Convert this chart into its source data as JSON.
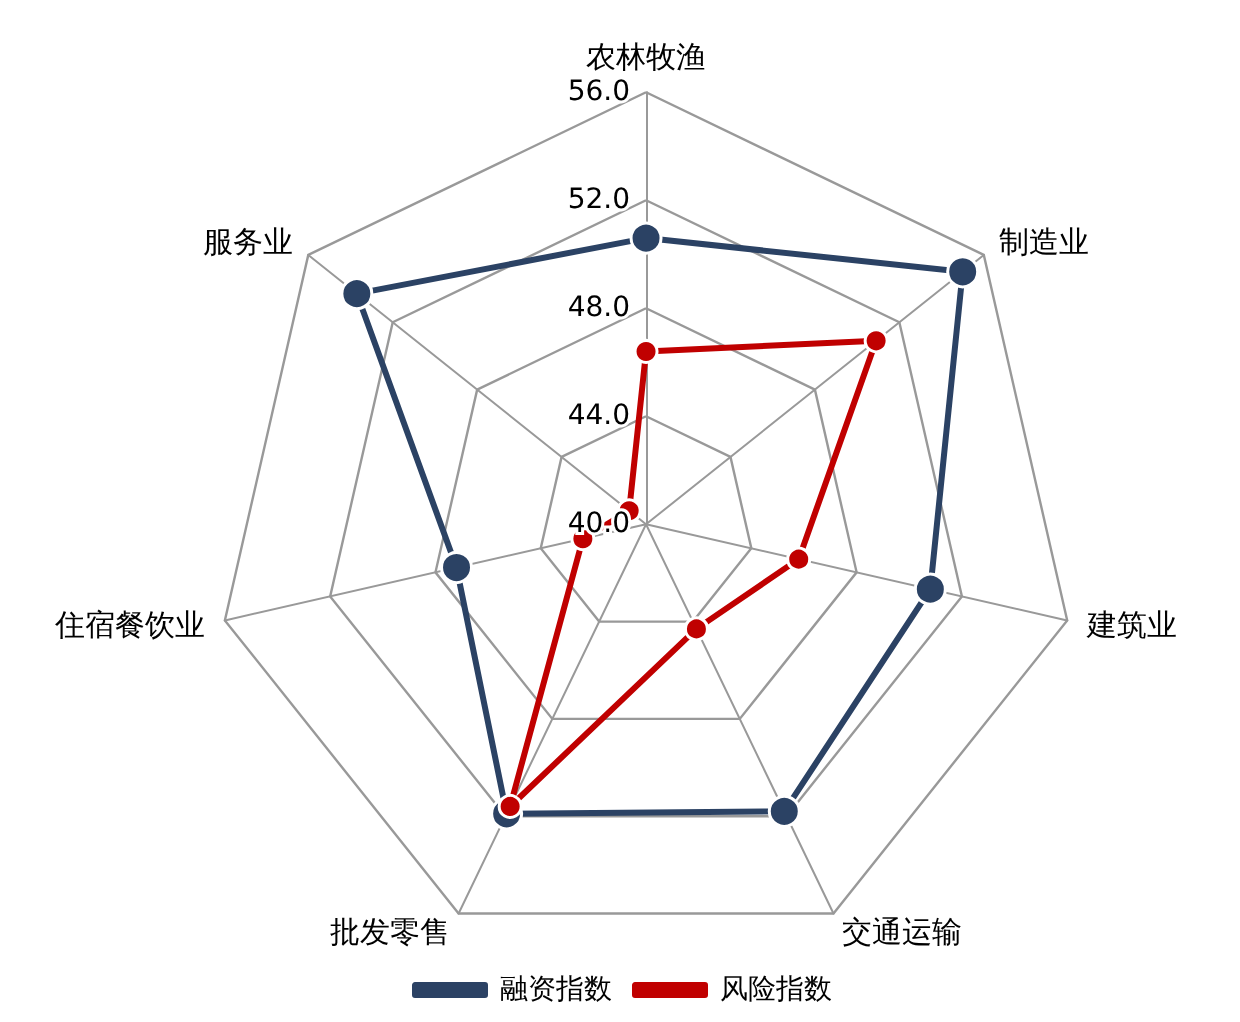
{
  "chart_data": {
    "type": "radar",
    "categories": [
      "农林牧渔",
      "制造业",
      "建筑业",
      "交通运输",
      "批发零售",
      "住宿餐饮业",
      "服务业"
    ],
    "series": [
      {
        "name": "融资指数",
        "color": "#2b4264",
        "values": [
          50.6,
          55.0,
          50.8,
          51.8,
          51.9,
          47.2,
          53.7
        ]
      },
      {
        "name": "风险指数",
        "color": "#c00000",
        "values": [
          46.4,
          50.9,
          45.8,
          44.3,
          51.6,
          42.4,
          40.8
        ]
      }
    ],
    "ylim": [
      40,
      56
    ],
    "yticks": [
      {
        "value": 40,
        "label": "40.0"
      },
      {
        "value": 44,
        "label": "44.0"
      },
      {
        "value": 48,
        "label": "48.0"
      },
      {
        "value": 52,
        "label": "52.0"
      },
      {
        "value": 56,
        "label": "56.0"
      }
    ],
    "legend": "bottom",
    "marker": "circle",
    "line_style": "solid"
  }
}
